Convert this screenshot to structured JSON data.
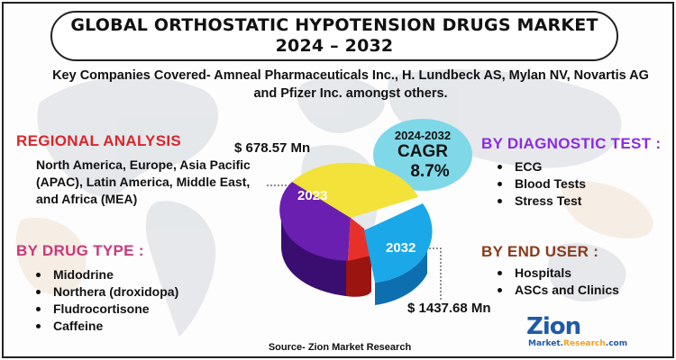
{
  "title": {
    "line1": "GLOBAL ORTHOSTATIC HYPOTENSION DRUGS MARKET",
    "line2": "2024 – 2032"
  },
  "key_companies": "Key Companies Covered- Amneal Pharmaceuticals Inc., H. Lundbeck AS, Mylan NV, Novartis AG and Pfizer Inc. amongst others.",
  "regional": {
    "heading": "REGIONAL ANALYSIS",
    "text": "North America, Europe, Asia Pacific (APAC), Latin America, Middle East, and Africa (MEA)"
  },
  "drug_type": {
    "heading": "BY DRUG TYPE :",
    "items": [
      "Midodrine",
      "Northera (droxidopa)",
      "Fludrocortisone",
      "Caffeine"
    ]
  },
  "diagnostic_test": {
    "heading": "BY DIAGNOSTIC TEST :",
    "items": [
      "ECG",
      "Blood Tests",
      "Stress Test"
    ]
  },
  "end_user": {
    "heading": "BY END USER  :",
    "items": [
      "Hospitals",
      "ASCs and Clinics"
    ]
  },
  "cagr": {
    "years": "2024-2032",
    "label": "CAGR",
    "value": "8.7%"
  },
  "market_values": {
    "year_2023": "2023",
    "value_2023": "$ 678.57 Mn",
    "year_2032": "2032",
    "value_2032": "$ 1437.68 Mn"
  },
  "source": "Source- Zion Market Research",
  "logo": {
    "main": "Zion",
    "sub_left": "Market.",
    "sub_right": "Research",
    "sub_suffix": ".com"
  },
  "colors": {
    "regional": "#d8262c",
    "drug_type": "#c8397a",
    "diagnostic": "#8a2be2",
    "end_user": "#8a3a1a",
    "cagr_bg": "#7fd8e8",
    "pie_purple": "#6a1fb0",
    "pie_yellow": "#f2e23a",
    "pie_red": "#e8302a",
    "pie_blue": "#1aa8e8"
  }
}
